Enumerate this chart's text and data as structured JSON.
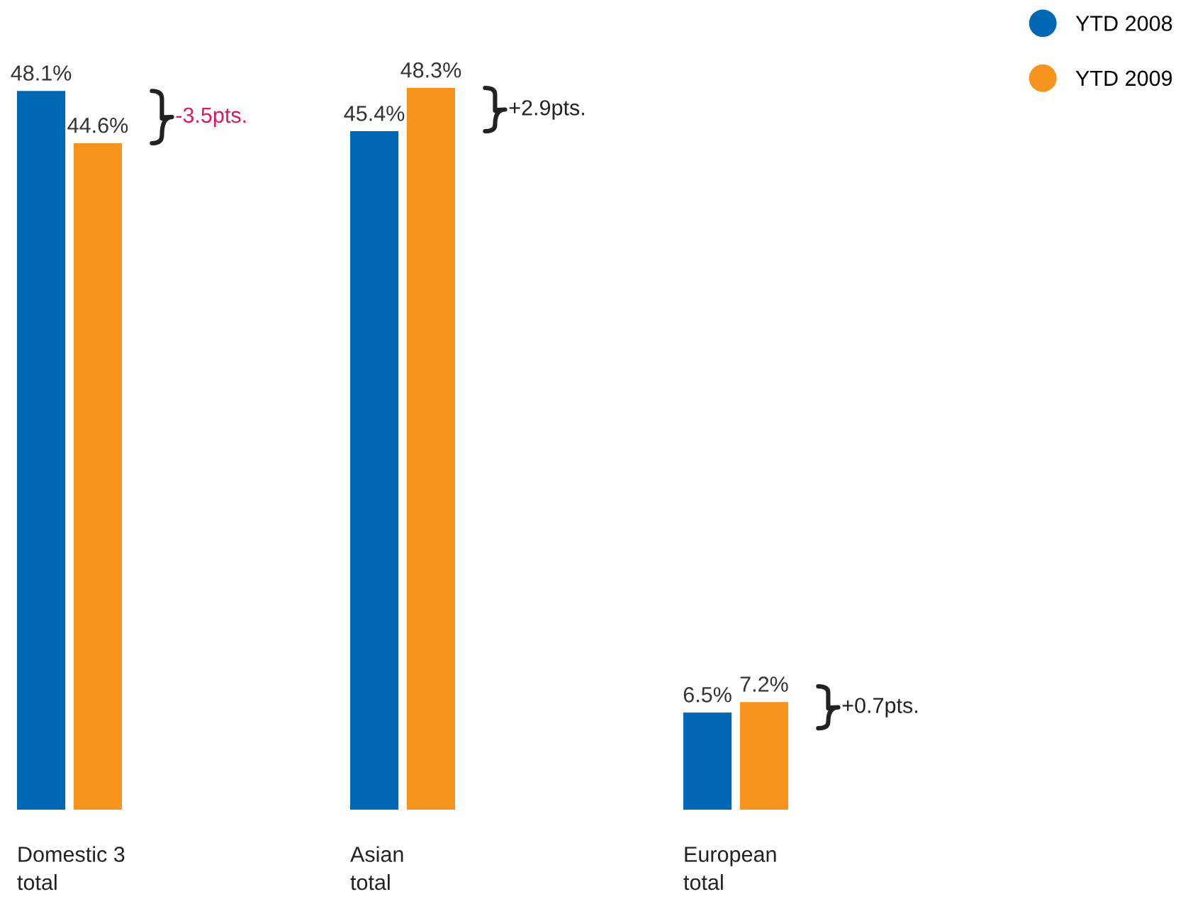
{
  "chart_data": {
    "type": "bar",
    "categories": [
      "Domestic 3\ntotal",
      "Asian\ntotal",
      "European\ntotal"
    ],
    "series": [
      {
        "name": "YTD 2008",
        "color": "#0068b4",
        "values": [
          48.1,
          45.4,
          6.5
        ],
        "value_labels": [
          "48.1%",
          "45.4%",
          "6.5%"
        ]
      },
      {
        "name": "YTD 2009",
        "color": "#f7941d",
        "values": [
          44.6,
          48.3,
          7.2
        ],
        "value_labels": [
          "44.6%",
          "48.3%",
          "7.2%"
        ]
      }
    ],
    "annotations": [
      "-3.5pts.",
      "+2.9pts.",
      "+0.7pts."
    ],
    "legend": "top right"
  }
}
